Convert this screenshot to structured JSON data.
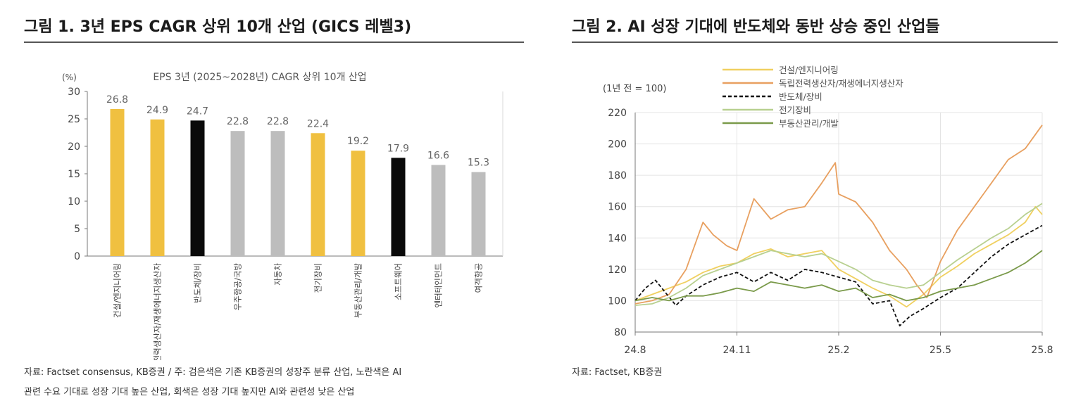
{
  "figure1": {
    "title": "그림 1. 3년 EPS CAGR 상위 10개 산업 (GICS 레벨3)",
    "source_line1": "자료: Factset consensus, KB증권 / 주: 검은색은 기존 KB증권의 성장주 분류 산업, 노란색은 AI",
    "source_line2": "관련 수요 기대로 성장 기대 높은 산업, 회색은 성장 기대 높지만 AI와 관련성 낮은 산업"
  },
  "figure2": {
    "title": "그림 2. AI 성장 기대에 반도체와 동반 상승 중인 산업들",
    "source_line1": "자료: Factset, KB증권"
  },
  "colors": {
    "yellow": "#f0c040",
    "black": "#0a0a0a",
    "gray": "#bdbdbd",
    "axis": "#777777",
    "grid": "#e4e4e4"
  },
  "chart_data": [
    {
      "type": "bar",
      "title": "EPS 3년 (2025~2028년) CAGR 상위 10개 산업",
      "ylabel": "(%)",
      "ylim": [
        0,
        30
      ],
      "yticks": [
        0,
        5,
        10,
        15,
        20,
        25,
        30
      ],
      "grid": false,
      "categories": [
        "건설/엔지니어링",
        "독립전력생산자/재생에너지생산자",
        "반도체/장비",
        "우주항공/국방",
        "자동차",
        "전기장비",
        "부동산관리/개발",
        "소프트웨어",
        "엔터테인먼트",
        "여객항공"
      ],
      "values": [
        26.8,
        24.9,
        24.7,
        22.8,
        22.8,
        22.4,
        19.2,
        17.9,
        16.6,
        15.3
      ],
      "value_labels": [
        "26.8",
        "24.9",
        "24.7",
        "22.8",
        "22.8",
        "22.4",
        "19.2",
        "17.9",
        "16.6",
        "15.3"
      ],
      "bar_colors": [
        "yellow",
        "yellow",
        "black",
        "gray",
        "gray",
        "yellow",
        "yellow",
        "black",
        "gray",
        "gray"
      ]
    },
    {
      "type": "line",
      "ylabel": "(1년 전 = 100)",
      "ylim": [
        80,
        220
      ],
      "yticks": [
        80,
        100,
        120,
        140,
        160,
        180,
        200,
        220
      ],
      "xlim": [
        0,
        12
      ],
      "xtick_labels": [
        {
          "x": 0,
          "label": "24.8"
        },
        {
          "x": 3,
          "label": "24.11"
        },
        {
          "x": 6,
          "label": "25.2"
        },
        {
          "x": 9,
          "label": "25.5"
        },
        {
          "x": 12,
          "label": "25.8"
        }
      ],
      "grid": true,
      "legend_position": "top",
      "series": [
        {
          "name": "건설/엔지니어링",
          "color": "#f0d060",
          "dash": "",
          "points": [
            [
              0,
              100
            ],
            [
              0.5,
              104
            ],
            [
              1,
              108
            ],
            [
              1.5,
              112
            ],
            [
              2,
              118
            ],
            [
              2.5,
              122
            ],
            [
              3,
              124
            ],
            [
              3.5,
              130
            ],
            [
              4,
              133
            ],
            [
              4.5,
              128
            ],
            [
              5,
              130
            ],
            [
              5.5,
              132
            ],
            [
              6,
              120
            ],
            [
              6.5,
              114
            ],
            [
              7,
              108
            ],
            [
              7.5,
              103
            ],
            [
              8,
              96
            ],
            [
              8.5,
              104
            ],
            [
              9,
              115
            ],
            [
              9.5,
              122
            ],
            [
              10,
              130
            ],
            [
              10.5,
              136
            ],
            [
              11,
              142
            ],
            [
              11.5,
              150
            ],
            [
              11.8,
              160
            ],
            [
              12,
              155
            ]
          ]
        },
        {
          "name": "독립전력생산자/재생에너지생산자",
          "color": "#e8a060",
          "dash": "",
          "points": [
            [
              0,
              98
            ],
            [
              0.5,
              100
            ],
            [
              1,
              104
            ],
            [
              1.5,
              120
            ],
            [
              2,
              150
            ],
            [
              2.3,
              142
            ],
            [
              2.7,
              135
            ],
            [
              3,
              132
            ],
            [
              3.5,
              165
            ],
            [
              4,
              152
            ],
            [
              4.5,
              158
            ],
            [
              5,
              160
            ],
            [
              5.5,
              175
            ],
            [
              5.9,
              188
            ],
            [
              6,
              168
            ],
            [
              6.5,
              163
            ],
            [
              7,
              150
            ],
            [
              7.5,
              132
            ],
            [
              8,
              120
            ],
            [
              8.3,
              110
            ],
            [
              8.6,
              102
            ],
            [
              9,
              125
            ],
            [
              9.5,
              145
            ],
            [
              10,
              160
            ],
            [
              10.5,
              175
            ],
            [
              11,
              190
            ],
            [
              11.5,
              197
            ],
            [
              12,
              212
            ]
          ]
        },
        {
          "name": "반도체/장비",
          "color": "#111111",
          "dash": "5,3",
          "points": [
            [
              0,
              100
            ],
            [
              0.3,
              108
            ],
            [
              0.6,
              113
            ],
            [
              0.9,
              105
            ],
            [
              1.2,
              97
            ],
            [
              1.5,
              103
            ],
            [
              2,
              110
            ],
            [
              2.5,
              115
            ],
            [
              3,
              118
            ],
            [
              3.5,
              112
            ],
            [
              4,
              118
            ],
            [
              4.5,
              113
            ],
            [
              5,
              120
            ],
            [
              5.5,
              118
            ],
            [
              6,
              115
            ],
            [
              6.5,
              112
            ],
            [
              7,
              98
            ],
            [
              7.5,
              100
            ],
            [
              7.8,
              84
            ],
            [
              8.1,
              90
            ],
            [
              8.5,
              95
            ],
            [
              9,
              102
            ],
            [
              9.5,
              108
            ],
            [
              10,
              118
            ],
            [
              10.5,
              128
            ],
            [
              11,
              136
            ],
            [
              11.5,
              142
            ],
            [
              12,
              148
            ]
          ]
        },
        {
          "name": "전기장비",
          "color": "#b8d090",
          "dash": "",
          "points": [
            [
              0,
              97
            ],
            [
              0.5,
              98
            ],
            [
              1,
              102
            ],
            [
              1.5,
              108
            ],
            [
              2,
              116
            ],
            [
              2.5,
              120
            ],
            [
              3,
              124
            ],
            [
              3.5,
              128
            ],
            [
              4,
              132
            ],
            [
              4.5,
              130
            ],
            [
              5,
              128
            ],
            [
              5.5,
              130
            ],
            [
              6,
              125
            ],
            [
              6.5,
              120
            ],
            [
              7,
              113
            ],
            [
              7.5,
              110
            ],
            [
              8,
              108
            ],
            [
              8.5,
              110
            ],
            [
              9,
              118
            ],
            [
              9.5,
              126
            ],
            [
              10,
              133
            ],
            [
              10.5,
              140
            ],
            [
              11,
              146
            ],
            [
              11.5,
              155
            ],
            [
              12,
              162
            ]
          ]
        },
        {
          "name": "부동산관리/개발",
          "color": "#7a9a4a",
          "dash": "",
          "points": [
            [
              0,
              100
            ],
            [
              0.5,
              102
            ],
            [
              1,
              100
            ],
            [
              1.5,
              103
            ],
            [
              2,
              103
            ],
            [
              2.5,
              105
            ],
            [
              3,
              108
            ],
            [
              3.5,
              106
            ],
            [
              4,
              112
            ],
            [
              4.5,
              110
            ],
            [
              5,
              108
            ],
            [
              5.5,
              110
            ],
            [
              6,
              106
            ],
            [
              6.5,
              108
            ],
            [
              7,
              102
            ],
            [
              7.5,
              104
            ],
            [
              8,
              100
            ],
            [
              8.5,
              102
            ],
            [
              9,
              106
            ],
            [
              9.5,
              108
            ],
            [
              10,
              110
            ],
            [
              10.5,
              114
            ],
            [
              11,
              118
            ],
            [
              11.5,
              124
            ],
            [
              12,
              132
            ]
          ]
        }
      ]
    }
  ]
}
